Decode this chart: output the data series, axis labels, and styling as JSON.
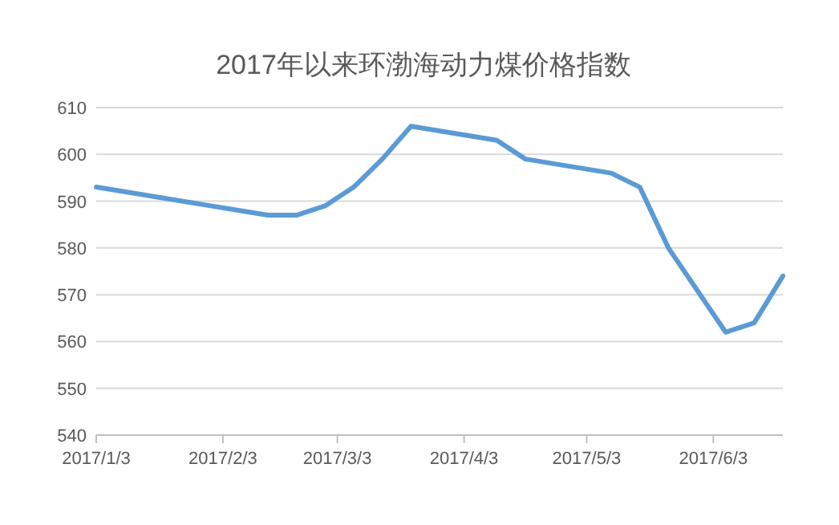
{
  "chart_data": {
    "type": "line",
    "title": "2017年以来环渤海动力煤价格指数",
    "x": [
      "2017-01-03",
      "2017-02-14",
      "2017-02-21",
      "2017-02-28",
      "2017-03-07",
      "2017-03-14",
      "2017-03-21",
      "2017-04-11",
      "2017-04-18",
      "2017-05-09",
      "2017-05-16",
      "2017-05-23",
      "2017-06-06",
      "2017-06-13",
      "2017-06-20"
    ],
    "series": [
      {
        "color": "#5b9bd5",
        "values": [
          593,
          587,
          587,
          589,
          593,
          599,
          606,
          603,
          599,
          596,
          593,
          580,
          562,
          564,
          574
        ]
      }
    ],
    "xlim": [
      "2017-01-03",
      "2017-06-20"
    ],
    "xticks": [
      {
        "value": "2017-01-03",
        "label": "2017/1/3"
      },
      {
        "value": "2017-02-03",
        "label": "2017/2/3"
      },
      {
        "value": "2017-03-03",
        "label": "2017/3/3"
      },
      {
        "value": "2017-04-03",
        "label": "2017/4/3"
      },
      {
        "value": "2017-05-03",
        "label": "2017/5/3"
      },
      {
        "value": "2017-06-03",
        "label": "2017/6/3"
      }
    ],
    "ylim": [
      540,
      610
    ],
    "yticks": [
      540,
      550,
      560,
      570,
      580,
      590,
      600,
      610
    ],
    "grid": "y",
    "marker": "none",
    "line_style": "solid"
  }
}
